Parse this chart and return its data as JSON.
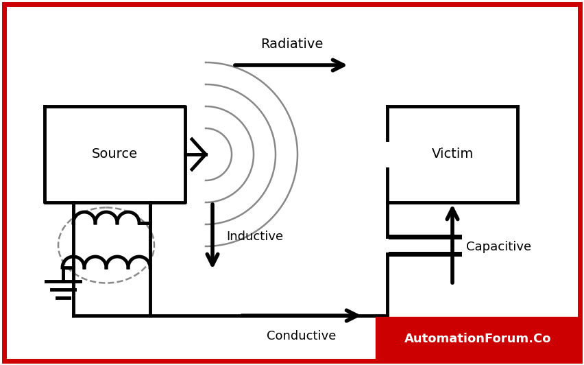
{
  "bg_color": "#ffffff",
  "border_color": "#cc0000",
  "line_color": "#000000",
  "gray_color": "#888888",
  "source_label": "Source",
  "victim_label": "Victim",
  "radiative_label": "Radiative",
  "inductive_label": "Inductive",
  "conductive_label": "Conductive",
  "capacitive_label": "Capacitive",
  "watermark_text": "AutomationForum.Co",
  "watermark_bg": "#cc0000",
  "watermark_fg": "#ffffff"
}
